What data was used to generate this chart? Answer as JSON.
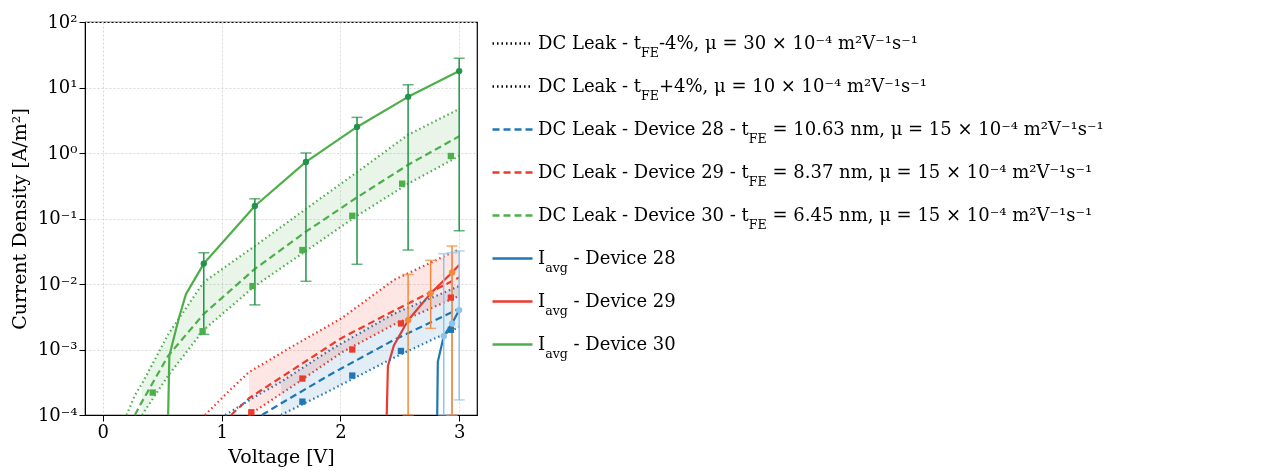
{
  "chart_data": {
    "type": "line",
    "xlabel": "Voltage [V]",
    "ylabel": "Current Density [A/m²]",
    "log": true,
    "grid": true,
    "legend": "right",
    "xlim": [
      -0.15,
      3.15
    ],
    "xticks": [
      0,
      1,
      2,
      3
    ],
    "ylim": [
      0.0001,
      100
    ],
    "yticks": [
      {
        "value": 0.0001,
        "label": "10⁻⁴"
      },
      {
        "value": 0.001,
        "label": "10⁻³"
      },
      {
        "value": 0.01,
        "label": "10⁻²"
      },
      {
        "value": 0.1,
        "label": "10⁻¹"
      },
      {
        "value": 1,
        "label": "10⁰"
      },
      {
        "value": 10,
        "label": "10¹"
      },
      {
        "value": 100,
        "label": "10²"
      }
    ],
    "series": [
      {
        "name": "DC Leak - t$_{FE}$-4%, μ = 30 × 10⁻⁴ m²V⁻¹s⁻¹",
        "color": "#000000",
        "line_style": "dotted"
      },
      {
        "name": "DC Leak - t$_{FE}$+4%, μ = 10 × 10⁻⁴ m²V⁻¹s⁻¹",
        "color": "#000000",
        "line_style": "dotted"
      },
      {
        "name": "DC Leak - Device 28 - t$_{FE}$ = 10.63 nm, μ = 15 × 10⁻⁴ m²V⁻¹s⁻¹",
        "color": "#1f77b4",
        "line_style": "dashed",
        "x": [
          1.34,
          1.5,
          1.92,
          2.45,
          3.0
        ],
        "values": [
          0.0001,
          0.00015,
          0.00042,
          0.0014,
          0.0042
        ],
        "lower": [
          null,
          0.0001,
          0.00024,
          0.00075,
          0.0022
        ],
        "upper": [
          null,
          0.00032,
          0.001,
          0.0035,
          0.0093
        ]
      },
      {
        "name": "DC Leak - Device 29 - t$_{FE}$ = 8.37 nm, μ = 15 × 10⁻⁴ m²V⁻¹s⁻¹",
        "color": "#ee3a2c",
        "line_style": "dashed",
        "x": [
          1.08,
          1.23,
          1.59,
          2.01,
          2.45,
          3.0
        ],
        "values": [
          0.0001,
          0.00018,
          0.00048,
          0.0015,
          0.0039,
          0.0126
        ],
        "lower": [
          null,
          0.0001,
          0.00027,
          0.0009,
          0.0024,
          0.0066
        ],
        "upper": [
          null,
          0.00045,
          0.0011,
          0.003,
          0.0115,
          0.034
        ]
      },
      {
        "name": "DC Leak - Device 30 - t$_{FE}$ = 6.45 nm, μ = 15 × 10⁻⁴ m²V⁻¹s⁻¹",
        "color": "#4daf4a",
        "line_style": "dashed",
        "x": [
          0.27,
          0.33,
          0.55,
          0.85,
          1.28,
          1.71,
          2.14,
          2.57,
          3.0
        ],
        "values": [
          0.0001,
          0.00016,
          0.0008,
          0.0035,
          0.017,
          0.063,
          0.21,
          0.66,
          1.8
        ],
        "lower": [
          null,
          0.0001,
          0.0004,
          0.002,
          0.0093,
          0.032,
          0.11,
          0.34,
          0.9
        ],
        "upper": [
          null,
          0.0003,
          0.0017,
          0.0107,
          0.038,
          0.14,
          0.51,
          1.9,
          4.7
        ]
      },
      {
        "name": "I$_{avg}$ - Device 28",
        "color": "#1f77b4",
        "line_style": "solid",
        "x": [
          2.815,
          2.82,
          2.87,
          2.94,
          3.0
        ],
        "values": [
          0.0001,
          0.00065,
          0.0016,
          0.0025,
          0.004
        ]
      },
      {
        "name": "I$_{avg}$ - Device 29",
        "color": "#ee3a2c",
        "line_style": "solid",
        "x": [
          2.39,
          2.4,
          2.45,
          2.57,
          2.76,
          2.94,
          3.0
        ],
        "values": [
          0.0001,
          0.00056,
          0.00115,
          0.0028,
          0.0072,
          0.015,
          0.0195
        ]
      },
      {
        "name": "I$_{avg}$ - Device 30",
        "color": "#4daf4a",
        "line_style": "solid",
        "x": [
          0.55,
          0.56,
          0.64,
          0.7,
          0.85,
          1.28,
          1.71,
          2.14,
          2.57,
          3.0
        ],
        "values": [
          0.0001,
          0.0008,
          0.003,
          0.007,
          0.0205,
          0.155,
          0.73,
          2.5,
          7.2,
          17.8
        ]
      },
      {
        "color": "#1f77b4",
        "line_style": "dotted",
        "x": [
          1.03,
          1.34,
          1.5,
          1.92,
          2.45,
          3.0
        ],
        "values": [
          0.0001,
          0.00022,
          0.00032,
          0.001,
          0.0035,
          0.0093
        ]
      },
      {
        "color": "#1f77b4",
        "line_style": "dotted",
        "x": [
          1.5,
          1.92,
          2.45,
          3.0
        ],
        "values": [
          0.0001,
          0.00024,
          0.00075,
          0.0022
        ]
      },
      {
        "color": "#ee3a2c",
        "line_style": "dotted",
        "x": [
          0.86,
          1.08,
          1.23,
          1.59,
          2.01,
          2.45,
          3.0
        ],
        "values": [
          0.0001,
          0.00025,
          0.00045,
          0.0011,
          0.003,
          0.0115,
          0.034
        ]
      },
      {
        "color": "#ee3a2c",
        "line_style": "dotted",
        "x": [
          1.23,
          1.59,
          2.01,
          2.45,
          3.0
        ],
        "values": [
          0.0001,
          0.00027,
          0.0009,
          0.0024,
          0.0066
        ]
      },
      {
        "color": "#4daf4a",
        "line_style": "dotted",
        "x": [
          0.2,
          0.27,
          0.33,
          0.55,
          0.85,
          1.28,
          1.71,
          2.14,
          2.57,
          3.0
        ],
        "values": [
          0.0001,
          0.0002,
          0.0003,
          0.0017,
          0.0107,
          0.038,
          0.14,
          0.51,
          1.9,
          4.7
        ]
      },
      {
        "color": "#4daf4a",
        "line_style": "dotted",
        "x": [
          0.33,
          0.55,
          0.85,
          1.28,
          1.71,
          2.14,
          2.57,
          3.0
        ],
        "values": [
          0.0001,
          0.0004,
          0.002,
          0.0093,
          0.032,
          0.11,
          0.34,
          0.9
        ]
      },
      {
        "type": "scatter",
        "marker": "square",
        "color": "#1f77b4",
        "x": [
          1.68,
          2.1,
          2.51,
          2.93
        ],
        "values": [
          0.00016,
          0.0004,
          0.00095,
          0.002
        ]
      },
      {
        "type": "scatter",
        "marker": "square",
        "color": "#ee3a2c",
        "x": [
          1.25,
          1.68,
          2.1,
          2.51,
          2.93
        ],
        "values": [
          0.00011,
          0.00036,
          0.001,
          0.0025,
          0.0062
        ]
      },
      {
        "type": "scatter",
        "marker": "square",
        "color": "#4daf4a",
        "x": [
          0.42,
          0.84,
          1.26,
          1.68,
          2.1,
          2.52,
          2.93
        ],
        "values": [
          0.00022,
          0.0019,
          0.0093,
          0.033,
          0.11,
          0.34,
          0.9
        ]
      },
      {
        "type": "scatter",
        "marker": "circle",
        "color": "#8ec4e8",
        "x": [
          2.87,
          2.94,
          3.0
        ],
        "values": [
          0.0016,
          0.0025,
          0.004
        ],
        "errors": [
          [
            0.0001,
            0.029
          ],
          [
            0.0001,
            0.03
          ],
          [
            0.00017,
            0.032
          ]
        ]
      },
      {
        "type": "scatter",
        "marker": "circle",
        "color": "#f5883a",
        "x": [
          2.57,
          2.76,
          2.94
        ],
        "values": [
          0.0028,
          0.0072,
          0.015
        ],
        "errors": [
          [
            0.0001,
            0.014
          ],
          [
            0.0021,
            0.023
          ],
          [
            0.0001,
            0.038
          ]
        ]
      },
      {
        "type": "scatter",
        "marker": "circle",
        "color": "#23924a",
        "x": [
          0.85,
          1.28,
          1.71,
          2.14,
          2.57,
          3.0
        ],
        "values": [
          0.0205,
          0.155,
          0.73,
          2.5,
          7.2,
          17.8
        ],
        "errors": [
          [
            0.0017,
            0.03
          ],
          [
            0.0048,
            0.2
          ],
          [
            0.011,
            1.0
          ],
          [
            0.02,
            3.5
          ],
          [
            0.033,
            11
          ],
          [
            0.065,
            28
          ]
        ]
      }
    ]
  }
}
